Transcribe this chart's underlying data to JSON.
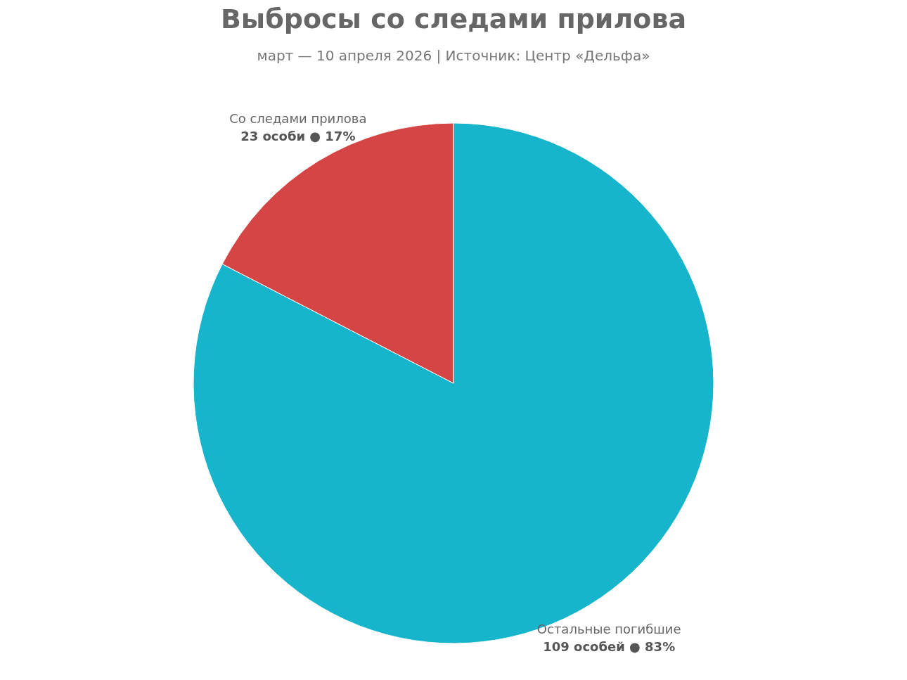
{
  "chart_data": {
    "type": "pie",
    "title": "Выбросы со следами прилова",
    "subtitle": "март — 10 апреля 2026 | Источник: Центр «Дельфа»",
    "categories": [
      "Остальные погибшие",
      "Со следами прилова"
    ],
    "values": [
      109,
      23
    ],
    "colors": [
      "#17b5cb",
      "#d64545"
    ],
    "value_labels": [
      "109 особей ● 83%",
      "23 особи ● 17%"
    ]
  }
}
